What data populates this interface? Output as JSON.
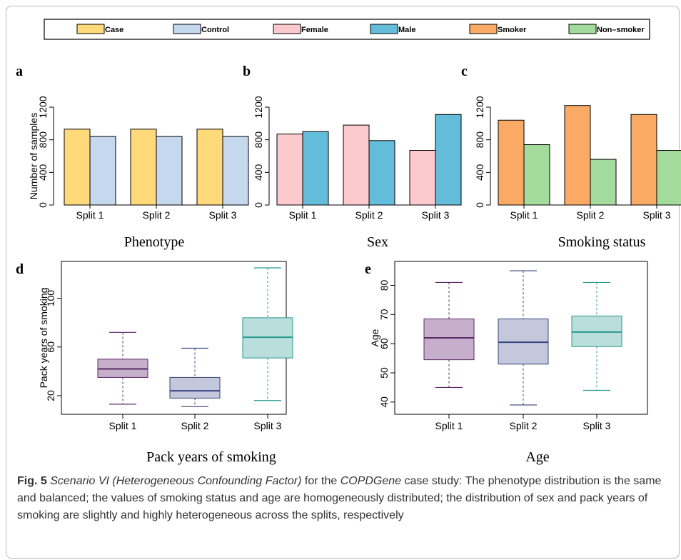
{
  "legend": {
    "items": [
      {
        "label": "Case",
        "color": "#FFD97A"
      },
      {
        "label": "Control",
        "color": "#C6D8EE"
      },
      {
        "label": "Female",
        "color": "#FCC9CC"
      },
      {
        "label": "Male",
        "color": "#63BDDA"
      },
      {
        "label": "Smoker",
        "color": "#FBAA66"
      },
      {
        "label": "Non–smoker",
        "color": "#A3DB9C"
      }
    ]
  },
  "chart_data": [
    {
      "panel": "a",
      "type": "bar",
      "title": "Phenotype",
      "ylabel": "Number of samples",
      "ylim": [
        0,
        1200
      ],
      "yticks": [
        0,
        400,
        800,
        1200
      ],
      "categories": [
        "Split 1",
        "Split 2",
        "Split 3"
      ],
      "series": [
        {
          "name": "Case",
          "color": "#FFD97A",
          "values": [
            930,
            930,
            930
          ]
        },
        {
          "name": "Control",
          "color": "#C6D8EE",
          "values": [
            840,
            840,
            840
          ]
        }
      ]
    },
    {
      "panel": "b",
      "type": "bar",
      "title": "Sex",
      "ylabel": "",
      "ylim": [
        0,
        1200
      ],
      "yticks": [
        0,
        400,
        800,
        1200
      ],
      "categories": [
        "Split 1",
        "Split 2",
        "Split 3"
      ],
      "series": [
        {
          "name": "Female",
          "color": "#FCC9CC",
          "values": [
            870,
            980,
            670
          ]
        },
        {
          "name": "Male",
          "color": "#63BDDA",
          "values": [
            900,
            790,
            1110
          ]
        }
      ]
    },
    {
      "panel": "c",
      "type": "bar",
      "title": "Smoking status",
      "ylabel": "",
      "ylim": [
        0,
        1200
      ],
      "yticks": [
        0,
        400,
        800,
        1200
      ],
      "categories": [
        "Split 1",
        "Split 2",
        "Split 3"
      ],
      "series": [
        {
          "name": "Smoker",
          "color": "#FBAA66",
          "values": [
            1040,
            1220,
            1110
          ]
        },
        {
          "name": "Non–smoker",
          "color": "#A3DB9C",
          "values": [
            740,
            560,
            670
          ]
        }
      ]
    },
    {
      "panel": "d",
      "type": "box",
      "title": "Pack years of smoking",
      "ylabel": "Pack years of smoking",
      "ylim": [
        10,
        125
      ],
      "yticks": [
        20,
        60,
        100
      ],
      "categories": [
        "Split 1",
        "Split 2",
        "Split 3"
      ],
      "boxes": [
        {
          "min": 13,
          "q1": 35,
          "median": 42,
          "q3": 50,
          "max": 72,
          "fill": "#C5AFCB",
          "stroke": "#5B2A66"
        },
        {
          "min": 11,
          "q1": 18,
          "median": 24,
          "q3": 35,
          "max": 59,
          "fill": "#C3C8DC",
          "stroke": "#39457E"
        },
        {
          "min": 16,
          "q1": 51,
          "median": 68,
          "q3": 84,
          "max": 125,
          "fill": "#BADEDC",
          "stroke": "#2A9A92"
        }
      ]
    },
    {
      "panel": "e",
      "type": "box",
      "title": "Age",
      "ylabel": "Age",
      "ylim": [
        38,
        86
      ],
      "yticks": [
        40,
        50,
        60,
        70,
        80
      ],
      "categories": [
        "Split 1",
        "Split 2",
        "Split 3"
      ],
      "boxes": [
        {
          "min": 45,
          "q1": 54.5,
          "median": 62,
          "q3": 68.5,
          "max": 81,
          "fill": "#C5AFCB",
          "stroke": "#5B2A66"
        },
        {
          "min": 39,
          "q1": 53,
          "median": 60.5,
          "q3": 68.5,
          "max": 85,
          "fill": "#C3C8DC",
          "stroke": "#39457E"
        },
        {
          "min": 44,
          "q1": 59,
          "median": 64,
          "q3": 69.5,
          "max": 81,
          "fill": "#BADEDC",
          "stroke": "#2A9A92"
        }
      ]
    }
  ],
  "caption": {
    "label": "Fig. 5",
    "scenario": "Scenario VI (Heterogeneous Confounding Factor)",
    "text_a": " for the ",
    "dataset": "COPDGene",
    "text_b": " case study: The phenotype distribution is the same and balanced; the values of smoking status and age are homogeneously distributed; the distribution of sex and pack years of smoking are slightly and highly heterogeneous across the splits, respectively"
  }
}
